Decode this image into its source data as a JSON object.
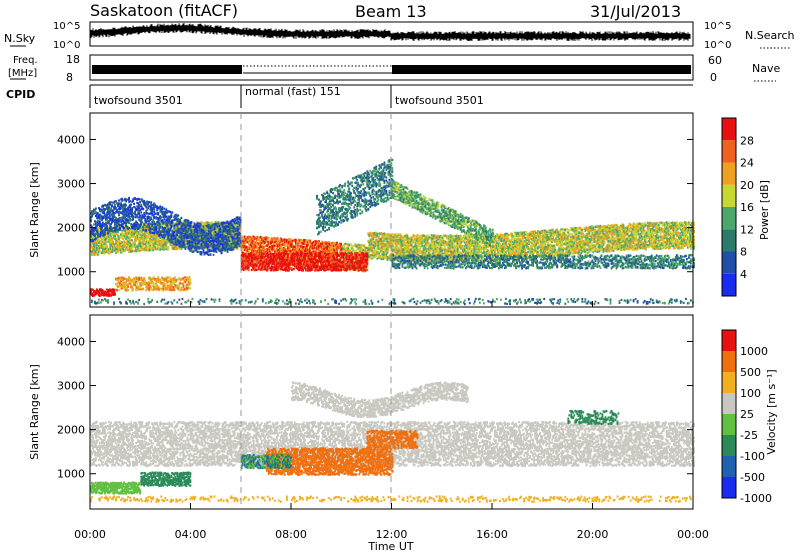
{
  "header": {
    "title": "Saskatoon (fitACF)",
    "beam": "Beam 13",
    "date": "31/Jul/2013"
  },
  "panels": {
    "nsky": {
      "label": "N.Sky",
      "right_label": "N.Search",
      "ticks": [
        "10^5",
        "10^0"
      ],
      "right_ticks": [
        "10^5",
        "10^0"
      ]
    },
    "freq": {
      "label_1": "Freq.",
      "label_2": "[MHz]",
      "ticks": [
        "18",
        "8"
      ],
      "right_ticks": [
        "60",
        "0"
      ],
      "right_label": "Nave"
    },
    "cpid": {
      "label": "CPID",
      "segments": [
        {
          "name": "twofsound 3501",
          "start": 0,
          "end": 6
        },
        {
          "name": "normal (fast) 151",
          "start": 6,
          "end": 12
        },
        {
          "name": "twofsound 3501",
          "start": 12,
          "end": 24
        }
      ]
    }
  },
  "chart_data": [
    {
      "type": "heatmap",
      "name": "power",
      "ylabel": "Slant Range [km]",
      "ylim": [
        200,
        4600
      ],
      "yticks": [
        1000,
        2000,
        3000,
        4000
      ],
      "xlim": [
        0,
        24
      ],
      "colorbar_label": "Power [dB]",
      "colorbar_ticks": [
        "4",
        "8",
        "12",
        "16",
        "20",
        "24",
        "28"
      ],
      "colors": [
        "#1a2cf0",
        "#1f4fa8",
        "#2c7a6a",
        "#4ca86a",
        "#c8d830",
        "#f0a020",
        "#f06020",
        "#e81010"
      ]
    },
    {
      "type": "heatmap",
      "name": "velocity",
      "ylabel": "Slant Range [km]",
      "ylim": [
        200,
        4600
      ],
      "yticks": [
        1000,
        2000,
        3000,
        4000
      ],
      "xlim": [
        0,
        24
      ],
      "xlabel": "Time UT",
      "xticks": [
        "00:00",
        "04:00",
        "08:00",
        "12:00",
        "16:00",
        "20:00",
        "00:00"
      ],
      "colorbar_label": "Velocity [m s⁻¹]",
      "colorbar_ticks": [
        "1000",
        "500",
        "100",
        "25",
        "-25",
        "-100",
        "-500",
        "-1000"
      ],
      "colors": [
        "#1a2cf0",
        "#1f60b0",
        "#2c8a5a",
        "#60c040",
        "#c8c8c0",
        "#f0b020",
        "#f07010",
        "#e81010"
      ]
    }
  ]
}
